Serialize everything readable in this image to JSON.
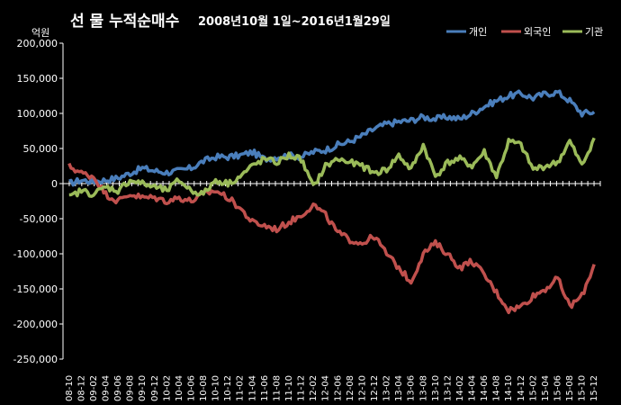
{
  "chart_data": {
    "type": "line",
    "title": "선 물 누적순매수",
    "subtitle": "2008년10월 1일~2016년1월29일",
    "y_unit": "억원",
    "ylim": [
      -250000,
      200000
    ],
    "y_ticks": [
      "200,000",
      "150,000",
      "100,000",
      "50,000",
      "0",
      "-50,000",
      "-100,000",
      "-150,000",
      "-200,000",
      "-250,000"
    ],
    "y_tick_values": [
      200000,
      150000,
      100000,
      50000,
      0,
      -50000,
      -100000,
      -150000,
      -200000,
      -250000
    ],
    "categories": [
      "08-10",
      "08-12",
      "09-02",
      "09-04",
      "09-06",
      "09-08",
      "09-10",
      "09-12",
      "10-02",
      "10-04",
      "10-06",
      "10-08",
      "10-10",
      "10-12",
      "11-02",
      "11-04",
      "11-06",
      "11-08",
      "11-10",
      "11-12",
      "12-02",
      "12-04",
      "12-06",
      "12-08",
      "12-10",
      "12-12",
      "13-02",
      "13-04",
      "13-06",
      "13-08",
      "13-10",
      "13-12",
      "14-02",
      "14-04",
      "14-06",
      "14-08",
      "14-10",
      "14-12",
      "15-02",
      "15-04",
      "15-06",
      "15-08",
      "15-10",
      "15-12"
    ],
    "grid": false,
    "legend_position": "top-right",
    "series": [
      {
        "name": "개인",
        "color": "#4a7ebb",
        "values": [
          0,
          5000,
          3000,
          5000,
          8000,
          15000,
          22000,
          18000,
          16000,
          18000,
          22000,
          32000,
          38000,
          38000,
          40000,
          45000,
          35000,
          38000,
          40000,
          38000,
          45000,
          48000,
          55000,
          60000,
          68000,
          78000,
          85000,
          88000,
          90000,
          95000,
          92000,
          95000,
          92000,
          100000,
          110000,
          118000,
          125000,
          128000,
          122000,
          128000,
          130000,
          118000,
          100000,
          102000
        ]
      },
      {
        "name": "외국인",
        "color": "#c0504d",
        "values": [
          25000,
          15000,
          10000,
          -15000,
          -25000,
          -15000,
          -20000,
          -20000,
          -25000,
          -20000,
          -25000,
          -15000,
          -10000,
          -20000,
          -35000,
          -55000,
          -60000,
          -65000,
          -55000,
          -45000,
          -30000,
          -45000,
          -70000,
          -80000,
          -85000,
          -75000,
          -100000,
          -120000,
          -140000,
          -100000,
          -85000,
          -100000,
          -120000,
          -110000,
          -130000,
          -155000,
          -180000,
          -175000,
          -160000,
          -150000,
          -135000,
          -175000,
          -160000,
          -115000
        ]
      },
      {
        "name": "기관",
        "color": "#9bbb59",
        "values": [
          -20000,
          -10000,
          -15000,
          -5000,
          -10000,
          5000,
          0,
          -5000,
          -10000,
          5000,
          -10000,
          -15000,
          5000,
          0,
          10000,
          25000,
          35000,
          30000,
          40000,
          35000,
          -5000,
          25000,
          35000,
          30000,
          25000,
          15000,
          20000,
          40000,
          20000,
          55000,
          10000,
          30000,
          35000,
          25000,
          45000,
          10000,
          60000,
          55000,
          20000,
          25000,
          30000,
          60000,
          25000,
          65000
        ]
      }
    ]
  }
}
